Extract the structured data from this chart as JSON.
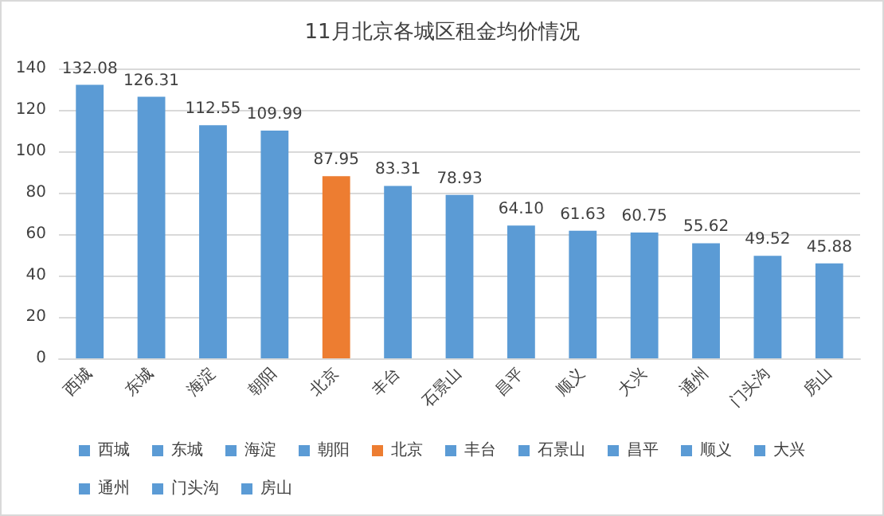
{
  "chart_data": {
    "type": "bar",
    "title": "11月北京各城区租金均价情况",
    "categories": [
      "西城",
      "东城",
      "海淀",
      "朝阳",
      "北京",
      "丰台",
      "石景山",
      "昌平",
      "顺义",
      "大兴",
      "通州",
      "门头沟",
      "房山"
    ],
    "series": [
      {
        "name": "西城",
        "color": "#5b9bd5",
        "values": [
          132.08,
          null,
          null,
          null,
          null,
          null,
          null,
          null,
          null,
          null,
          null,
          null,
          null
        ],
        "value_labels": [
          "132.08",
          null,
          null,
          null,
          null,
          null,
          null,
          null,
          null,
          null,
          null,
          null,
          null
        ]
      },
      {
        "name": "东城",
        "color": "#5b9bd5",
        "values": [
          null,
          126.31,
          null,
          null,
          null,
          null,
          null,
          null,
          null,
          null,
          null,
          null,
          null
        ],
        "value_labels": [
          null,
          "126.31",
          null,
          null,
          null,
          null,
          null,
          null,
          null,
          null,
          null,
          null,
          null
        ]
      },
      {
        "name": "海淀",
        "color": "#5b9bd5",
        "values": [
          null,
          null,
          112.55,
          null,
          null,
          null,
          null,
          null,
          null,
          null,
          null,
          null,
          null
        ],
        "value_labels": [
          null,
          null,
          "112.55",
          null,
          null,
          null,
          null,
          null,
          null,
          null,
          null,
          null,
          null
        ]
      },
      {
        "name": "朝阳",
        "color": "#5b9bd5",
        "values": [
          null,
          null,
          null,
          109.99,
          null,
          null,
          null,
          null,
          null,
          null,
          null,
          null,
          null
        ],
        "value_labels": [
          null,
          null,
          null,
          "109.99",
          null,
          null,
          null,
          null,
          null,
          null,
          null,
          null,
          null
        ]
      },
      {
        "name": "北京",
        "color": "#ed7d31",
        "values": [
          null,
          null,
          null,
          null,
          87.95,
          null,
          null,
          null,
          null,
          null,
          null,
          null,
          null
        ],
        "value_labels": [
          null,
          null,
          null,
          null,
          "87.95",
          null,
          null,
          null,
          null,
          null,
          null,
          null,
          null
        ]
      },
      {
        "name": "丰台",
        "color": "#5b9bd5",
        "values": [
          null,
          null,
          null,
          null,
          null,
          83.31,
          null,
          null,
          null,
          null,
          null,
          null,
          null
        ],
        "value_labels": [
          null,
          null,
          null,
          null,
          null,
          "83.31",
          null,
          null,
          null,
          null,
          null,
          null,
          null
        ]
      },
      {
        "name": "石景山",
        "color": "#5b9bd5",
        "values": [
          null,
          null,
          null,
          null,
          null,
          null,
          78.93,
          null,
          null,
          null,
          null,
          null,
          null
        ],
        "value_labels": [
          null,
          null,
          null,
          null,
          null,
          null,
          "78.93",
          null,
          null,
          null,
          null,
          null,
          null
        ]
      },
      {
        "name": "昌平",
        "color": "#5b9bd5",
        "values": [
          null,
          null,
          null,
          null,
          null,
          null,
          null,
          64.1,
          null,
          null,
          null,
          null,
          null
        ],
        "value_labels": [
          null,
          null,
          null,
          null,
          null,
          null,
          null,
          "64.10",
          null,
          null,
          null,
          null,
          null
        ]
      },
      {
        "name": "顺义",
        "color": "#5b9bd5",
        "values": [
          null,
          null,
          null,
          null,
          null,
          null,
          null,
          null,
          61.63,
          null,
          null,
          null,
          null
        ],
        "value_labels": [
          null,
          null,
          null,
          null,
          null,
          null,
          null,
          null,
          "61.63",
          null,
          null,
          null,
          null
        ]
      },
      {
        "name": "大兴",
        "color": "#5b9bd5",
        "values": [
          null,
          null,
          null,
          null,
          null,
          null,
          null,
          null,
          null,
          60.75,
          null,
          null,
          null
        ],
        "value_labels": [
          null,
          null,
          null,
          null,
          null,
          null,
          null,
          null,
          null,
          "60.75",
          null,
          null,
          null
        ]
      },
      {
        "name": "通州",
        "color": "#5b9bd5",
        "values": [
          null,
          null,
          null,
          null,
          null,
          null,
          null,
          null,
          null,
          null,
          55.62,
          null,
          null
        ],
        "value_labels": [
          null,
          null,
          null,
          null,
          null,
          null,
          null,
          null,
          null,
          null,
          "55.62",
          null,
          null
        ]
      },
      {
        "name": "门头沟",
        "color": "#5b9bd5",
        "values": [
          null,
          null,
          null,
          null,
          null,
          null,
          null,
          null,
          null,
          null,
          null,
          49.52,
          null
        ],
        "value_labels": [
          null,
          null,
          null,
          null,
          null,
          null,
          null,
          null,
          null,
          null,
          null,
          "49.52",
          null
        ]
      },
      {
        "name": "房山",
        "color": "#5b9bd5",
        "values": [
          null,
          null,
          null,
          null,
          null,
          null,
          null,
          null,
          null,
          null,
          null,
          null,
          45.88
        ],
        "value_labels": [
          null,
          null,
          null,
          null,
          null,
          null,
          null,
          null,
          null,
          null,
          null,
          null,
          "45.88"
        ]
      }
    ],
    "stacked": true,
    "ylim": [
      0,
      140
    ],
    "yticks": [
      0,
      20,
      40,
      60,
      80,
      100,
      120,
      140
    ],
    "grid": "y",
    "legend": "bottom"
  }
}
